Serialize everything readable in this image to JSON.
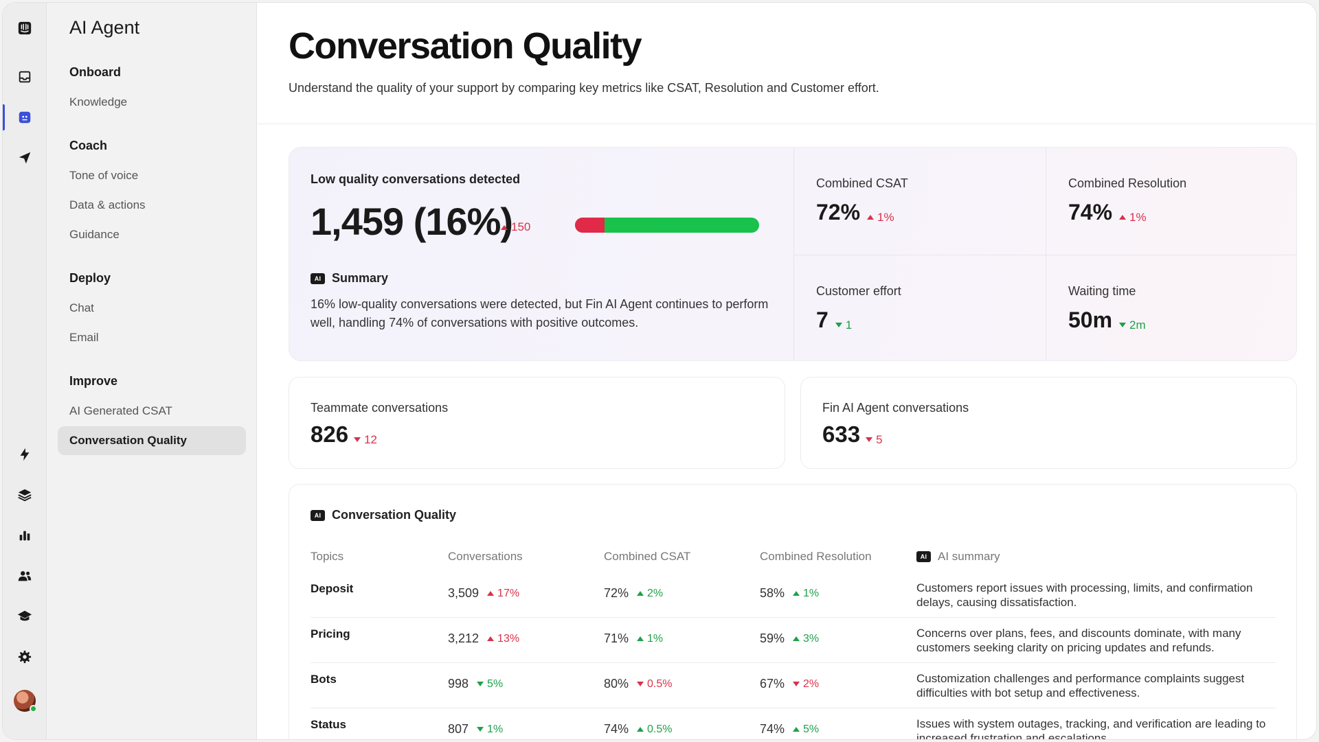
{
  "nav": {
    "title": "AI Agent",
    "sections": [
      {
        "title": "Onboard",
        "items": [
          "Knowledge"
        ]
      },
      {
        "title": "Coach",
        "items": [
          "Tone of voice",
          "Data & actions",
          "Guidance"
        ]
      },
      {
        "title": "Deploy",
        "items": [
          "Chat",
          "Email"
        ]
      },
      {
        "title": "Improve",
        "items": [
          "AI Generated CSAT",
          "Conversation Quality"
        ]
      }
    ],
    "active_item": "Conversation Quality"
  },
  "rail": {
    "icons": [
      "logo-icon",
      "inbox-icon",
      "ai-agent-icon",
      "outbound-icon",
      "bolt-icon",
      "layers-icon",
      "reports-icon",
      "contacts-icon",
      "academy-icon",
      "settings-icon",
      "avatar"
    ],
    "active": "ai-agent-icon"
  },
  "page": {
    "title": "Conversation Quality",
    "subtitle": "Understand the quality of your support by comparing key metrics like CSAT, Resolution and Customer effort."
  },
  "hero": {
    "label": "Low quality conversations detected",
    "value": "1,459 (16%)",
    "delta": "150",
    "low_quality_fraction": 0.16,
    "summary_badge": "AI",
    "summary_title": "Summary",
    "summary_text": "16% low-quality conversations were detected, but Fin AI Agent continues to perform well, handling 74% of conversations with positive outcomes.",
    "metrics": [
      {
        "label": "Combined CSAT",
        "value": "72%",
        "delta": "1%"
      },
      {
        "label": "Combined Resolution",
        "value": "74%",
        "delta": "1%"
      },
      {
        "label": "Customer effort",
        "value": "7",
        "delta": "1"
      },
      {
        "label": "Waiting time",
        "value": "50m",
        "delta": "2m"
      }
    ]
  },
  "cards": {
    "teammate": {
      "label": "Teammate conversations",
      "value": "826",
      "delta": "12"
    },
    "fin": {
      "label": "Fin AI Agent conversations",
      "value": "633",
      "delta": "5"
    }
  },
  "table": {
    "badge": "AI",
    "title": "Conversation Quality",
    "headers": [
      "Topics",
      "Conversations",
      "Combined CSAT",
      "Combined Resolution",
      "AI summary"
    ],
    "rows": [
      {
        "topic": "Deposit",
        "conv": "3,509",
        "conv_d": "17%",
        "csat": "72%",
        "csat_d": "2%",
        "res": "58%",
        "res_d": "1%",
        "summary": "Customers report issues with processing, limits, and confirmation delays, causing dissatisfaction."
      },
      {
        "topic": "Pricing",
        "conv": "3,212",
        "conv_d": "13%",
        "csat": "71%",
        "csat_d": "1%",
        "res": "59%",
        "res_d": "3%",
        "summary": "Concerns over plans, fees, and discounts dominate, with many customers seeking clarity on pricing updates and refunds."
      },
      {
        "topic": "Bots",
        "conv": "998",
        "conv_d": "5%",
        "csat": "80%",
        "csat_d": "0.5%",
        "res": "67%",
        "res_d": "2%",
        "summary": "Customization challenges and performance complaints suggest difficulties with bot setup and effectiveness."
      },
      {
        "topic": "Status",
        "conv": "807",
        "conv_d": "1%",
        "csat": "74%",
        "csat_d": "0.5%",
        "res": "74%",
        "res_d": "5%",
        "summary": "Issues with system outages, tracking, and verification are leading to increased frustration and escalations."
      }
    ]
  },
  "colors": {
    "red": "#d8324a",
    "green": "#1fa14a",
    "accent": "#3b4fd8"
  }
}
